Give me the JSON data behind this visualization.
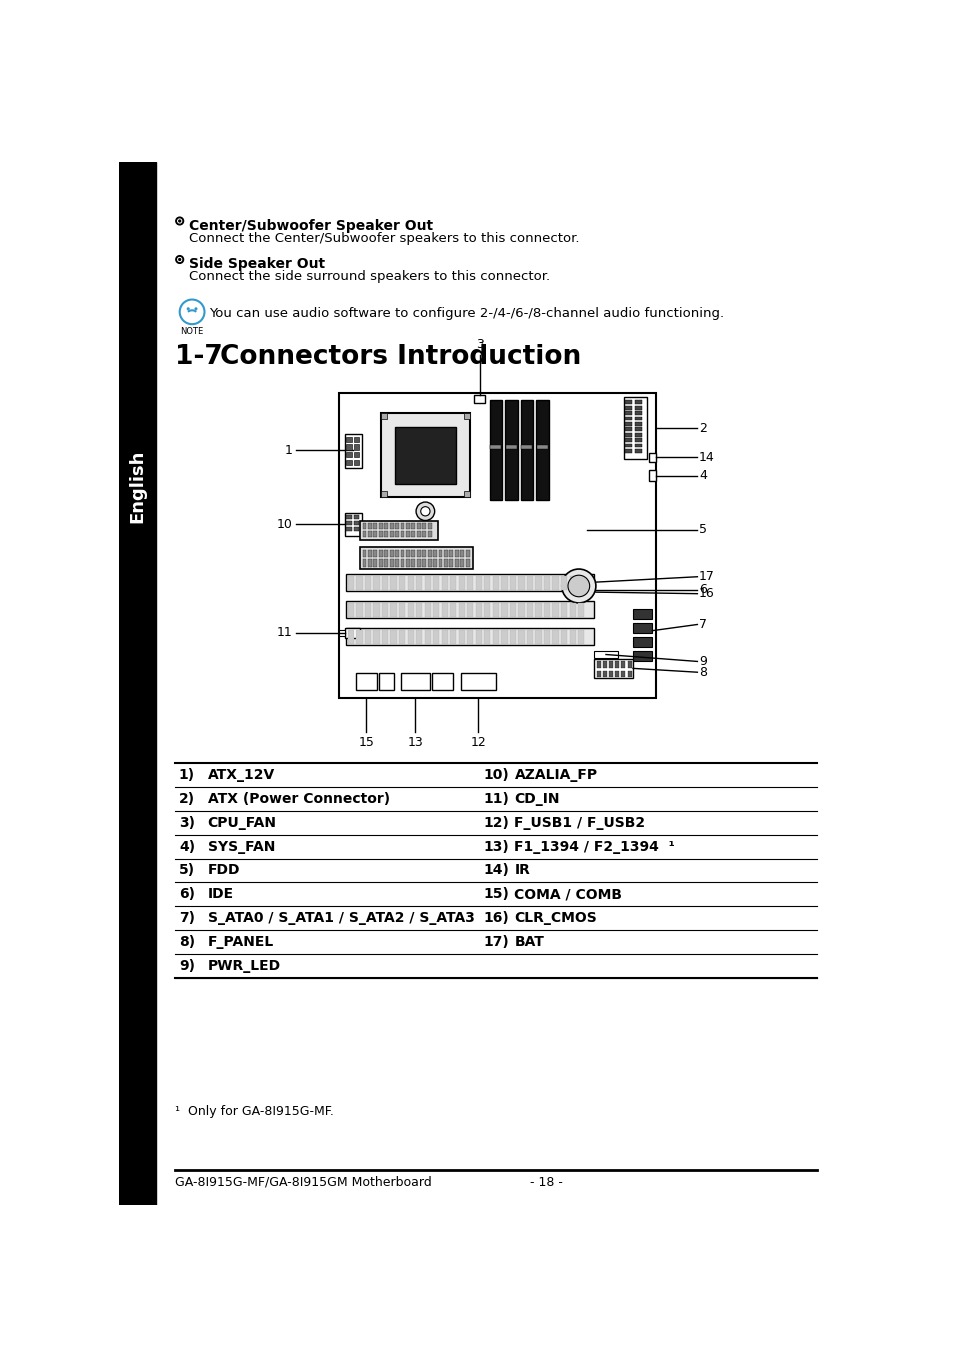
{
  "page_bg": "#ffffff",
  "sidebar_bg": "#000000",
  "sidebar_text": "English",
  "sidebar_text_color": "#ffffff",
  "title_section": "1-7    Connectors Introduction",
  "bullet1_bold": "Center/Subwoofer Speaker Out",
  "bullet1_text": "Connect the Center/Subwoofer speakers to this connector.",
  "bullet2_bold": "Side Speaker Out",
  "bullet2_text": "Connect the side surround speakers to this connector.",
  "note_text": "You can use audio software to configure 2-/4-/6-/8-channel audio functioning.",
  "connector_rows": [
    {
      "num": "1)",
      "left_label": "ATX_12V",
      "num2": "10)",
      "right_label": "AZALIA_FP"
    },
    {
      "num": "2)",
      "left_label": "ATX (Power Connector)",
      "num2": "11)",
      "right_label": "CD_IN"
    },
    {
      "num": "3)",
      "left_label": "CPU_FAN",
      "num2": "12)",
      "right_label": "F_USB1 / F_USB2"
    },
    {
      "num": "4)",
      "left_label": "SYS_FAN",
      "num2": "13)",
      "right_label": "F1_1394 / F2_1394  ¹"
    },
    {
      "num": "5)",
      "left_label": "FDD",
      "num2": "14)",
      "right_label": "IR"
    },
    {
      "num": "6)",
      "left_label": "IDE",
      "num2": "15)",
      "right_label": "COMA / COMB"
    },
    {
      "num": "7)",
      "left_label": "S_ATA0 / S_ATA1 / S_ATA2 / S_ATA3",
      "num2": "16)",
      "right_label": "CLR_CMOS"
    },
    {
      "num": "8)",
      "left_label": "F_PANEL",
      "num2": "17)",
      "right_label": "BAT"
    },
    {
      "num": "9)",
      "left_label": "PWR_LED",
      "num2": "",
      "right_label": ""
    }
  ],
  "footnote_icon": "¹",
  "footnote_text": "  Only for GA-8I915G-MF.",
  "footer_left": "GA-8I915G-MF/GA-8I915GM Motherboard",
  "footer_center": "- 18 -"
}
